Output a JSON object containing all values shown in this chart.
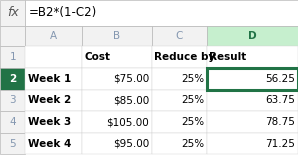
{
  "formula_icon": "fx",
  "formula_bar_text": "=B2*(1-C2)",
  "col_headers": [
    "A",
    "B",
    "C",
    "D"
  ],
  "row_numbers": [
    "1",
    "2",
    "3",
    "4",
    "5"
  ],
  "header_row": [
    "",
    "Cost",
    "Reduce by",
    "Result"
  ],
  "data_rows": [
    [
      "Week 1",
      "$75.00",
      "25%",
      "56.25"
    ],
    [
      "Week 2",
      "$85.00",
      "25%",
      "63.75"
    ],
    [
      "Week 3",
      "$105.00",
      "25%",
      "78.75"
    ],
    [
      "Week 4",
      "$95.00",
      "25%",
      "71.25"
    ]
  ],
  "selected_row_idx": 1,
  "selected_col_idx": 3,
  "formula_bar_bg": "#f2f2f2",
  "header_bg": "#f2f2f2",
  "selected_header_bg": "#c6efce",
  "selected_cell_border": "#217346",
  "selected_row_num_bg": "#217346",
  "selected_row_num_color": "#ffffff",
  "grid_color": "#d0d0d0",
  "header_text_color": "#8497b0",
  "row_num_color": "#8497b0",
  "fig_width": 2.98,
  "fig_height": 1.66,
  "dpi": 100
}
